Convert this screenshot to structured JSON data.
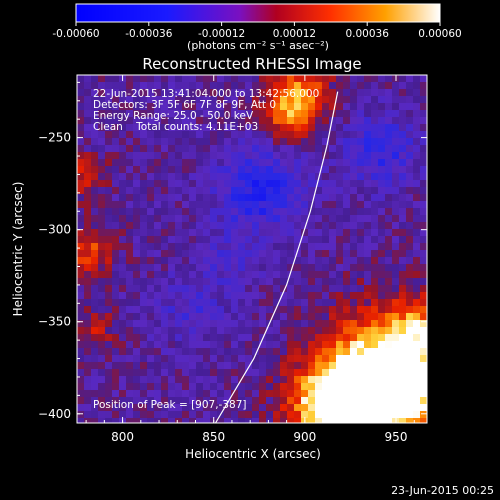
{
  "colorbar": {
    "ticks": [
      "-0.00060",
      "-0.00036",
      "-0.00012",
      "0.00012",
      "0.00036",
      "0.00060"
    ],
    "units_label": "(photons cm⁻² s⁻¹ asec⁻²)"
  },
  "chart_data": {
    "type": "heatmap",
    "title": "Reconstructed RHESSI Image",
    "xlabel": "Heliocentric X (arcsec)",
    "ylabel": "Heliocentric Y (arcsec)",
    "xlim": [
      775,
      967
    ],
    "ylim": [
      -405,
      -216
    ],
    "x_ticks": [
      800,
      850,
      900,
      950
    ],
    "x_tick_labels": [
      "800",
      "850",
      "900",
      "950"
    ],
    "y_ticks": [
      -400,
      -350,
      -300,
      -250
    ],
    "y_tick_labels": [
      "-400",
      "-350",
      "-300",
      "-250"
    ],
    "colorbar_range": [
      -0.0006,
      0.0006
    ],
    "annotations": [
      "22-Jun-2015 13:41:04.000 to 13:42:56.000",
      "Detectors: 3F 5F 6F 7F 8F 9F, Att 0",
      "Energy Range: 25.0 - 50.0 keV",
      "Clean    Total counts: 4.11E+03"
    ],
    "peak_text": "Position of Peak = [907,-387]",
    "peak_position": [
      907,
      -387
    ],
    "limb_line": [
      [
        851,
        -405
      ],
      [
        872,
        -370
      ],
      [
        890,
        -330
      ],
      [
        903,
        -290
      ],
      [
        912,
        -255
      ],
      [
        918,
        -225
      ]
    ]
  },
  "footer": {
    "timestamp": "23-Jun-2015 00:25"
  }
}
